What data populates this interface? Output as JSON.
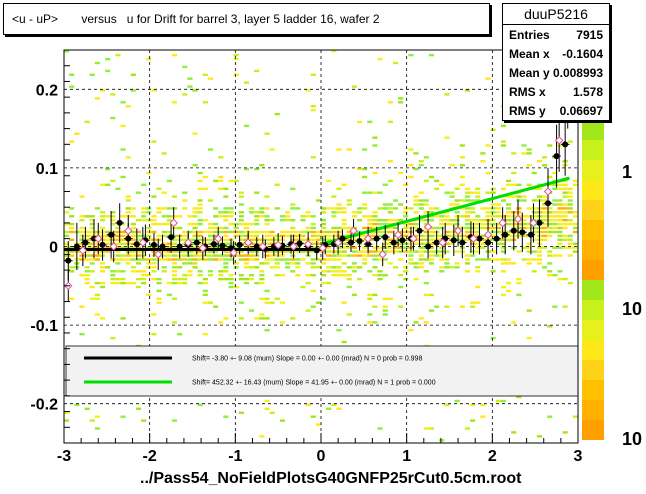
{
  "title": "<u - uP>       versus   u for Drift for barrel 3, layer 5 ladder 16, wafer 2",
  "footer": "../Pass54_NoFieldPlotsG40GNFP25rCut0.5cm.root",
  "stats": {
    "name": "duuP5216",
    "rows": [
      {
        "label": "Entries",
        "value": "7915"
      },
      {
        "label": "Mean x",
        "value": "-0.1604"
      },
      {
        "label": "Mean y",
        "value": "0.008993"
      },
      {
        "label": "RMS x",
        "value": "1.578"
      },
      {
        "label": "RMS y",
        "value": "0.06697"
      }
    ]
  },
  "colors": {
    "black_fit": "#000000",
    "green_fit": "#00dd00",
    "open_marker": "#e0509a",
    "palette": [
      "#ffe81a",
      "#f5f01a",
      "#c8f01a",
      "#a0e61a",
      "#8cf03c",
      "#ffc800",
      "#ffb000"
    ]
  },
  "chart_data": {
    "type": "scatter",
    "xlim": [
      -3,
      3
    ],
    "ylim": [
      -0.25,
      0.25
    ],
    "x_ticks": [
      "-3",
      "-2",
      "-1",
      "0",
      "1",
      "2",
      "3"
    ],
    "y_ticks": [
      "-0.2",
      "-0.1",
      "0",
      "0.1",
      "0.2"
    ],
    "z_ticks": [
      "1",
      "10",
      "10"
    ],
    "grid": true,
    "legend_placement": "bottom",
    "legend": [
      {
        "color": "black",
        "text": "Shift=    -3.80 +- 9.08 (mum) Slope =     0.00 +- 0.00 (mrad)  N = 0 prob = 0.998"
      },
      {
        "color": "green",
        "text": "Shift=    452.32 +- 16.43 (mum) Slope =    41.95 +- 0.00 (mrad)  N = 1 prob = 0.000"
      }
    ],
    "fit_lines": [
      {
        "name": "black",
        "x": [
          -3,
          0
        ],
        "y": [
          -0.0038,
          -0.0038
        ]
      },
      {
        "name": "green",
        "x": [
          0,
          2.9
        ],
        "y": [
          0.003,
          0.087
        ]
      }
    ],
    "profile_filled": {
      "x": [
        -2.95,
        -2.85,
        -2.75,
        -2.65,
        -2.55,
        -2.45,
        -2.35,
        -2.25,
        -2.15,
        -2.05,
        -1.95,
        -1.85,
        -1.75,
        -1.65,
        -1.55,
        -1.45,
        -1.35,
        -1.25,
        -1.15,
        -1.05,
        -0.95,
        -0.85,
        -0.75,
        -0.65,
        -0.55,
        -0.45,
        -0.35,
        -0.25,
        -0.15,
        -0.05,
        0.05,
        0.15,
        0.25,
        0.35,
        0.45,
        0.55,
        0.65,
        0.75,
        0.85,
        0.95,
        1.05,
        1.15,
        1.25,
        1.35,
        1.45,
        1.55,
        1.65,
        1.75,
        1.85,
        1.95,
        2.05,
        2.15,
        2.25,
        2.35,
        2.45,
        2.55,
        2.65,
        2.75,
        2.85
      ],
      "y": [
        -0.018,
        0.0,
        0.005,
        0.01,
        0.002,
        0.015,
        0.03,
        0.01,
        0.003,
        0.008,
        0.002,
        0.0,
        0.012,
        0.0,
        0.002,
        0.005,
        0.0,
        0.003,
        0.001,
        -0.002,
        0.002,
        0.005,
        0.0,
        -0.003,
        0.0,
        0.001,
        0.003,
        0.004,
        0.0,
        -0.005,
        0.002,
        0.003,
        0.01,
        0.005,
        0.007,
        0.003,
        0.01,
        0.012,
        0.005,
        0.008,
        0.01,
        0.02,
        0.0,
        0.005,
        0.01,
        0.008,
        0.005,
        0.012,
        0.01,
        0.005,
        0.01,
        0.015,
        0.02,
        0.018,
        0.015,
        0.03,
        0.055,
        0.115,
        0.13
      ],
      "err": [
        0.025,
        0.03,
        0.02,
        0.025,
        0.02,
        0.03,
        0.025,
        0.02,
        0.02,
        0.02,
        0.015,
        0.015,
        0.02,
        0.015,
        0.015,
        0.015,
        0.012,
        0.012,
        0.012,
        0.012,
        0.012,
        0.012,
        0.012,
        0.012,
        0.012,
        0.012,
        0.012,
        0.012,
        0.012,
        0.012,
        0.012,
        0.012,
        0.012,
        0.012,
        0.012,
        0.012,
        0.015,
        0.015,
        0.015,
        0.015,
        0.015,
        0.02,
        0.015,
        0.015,
        0.02,
        0.02,
        0.02,
        0.02,
        0.02,
        0.02,
        0.02,
        0.025,
        0.025,
        0.025,
        0.025,
        0.03,
        0.03,
        0.04,
        0.04
      ]
    },
    "profile_open": {
      "x": [
        -2.95,
        -2.78,
        -2.6,
        -2.42,
        -2.25,
        -2.08,
        -1.9,
        -1.72,
        -1.55,
        -1.38,
        -1.2,
        -1.02,
        -0.85,
        -0.68,
        -0.5,
        -0.32,
        -0.15,
        0.02,
        0.2,
        0.38,
        0.55,
        0.72,
        0.9,
        1.08,
        1.25,
        1.42,
        1.6,
        1.78,
        1.95,
        2.12,
        2.3,
        2.48,
        2.65,
        2.78,
        2.88
      ],
      "y": [
        -0.05,
        -0.005,
        0.01,
        0.0,
        0.02,
        0.005,
        -0.01,
        0.03,
        0.005,
        -0.002,
        0.01,
        -0.008,
        0.005,
        0.0,
        0.002,
        0.0,
        0.003,
        -0.002,
        0.005,
        0.02,
        0.01,
        -0.01,
        0.015,
        0.01,
        0.025,
        0.005,
        0.02,
        0.01,
        0.015,
        0.03,
        0.035,
        0.03,
        0.07,
        0.135,
        0.2
      ],
      "err": [
        0.02,
        0.02,
        0.02,
        0.02,
        0.02,
        0.02,
        0.02,
        0.02,
        0.015,
        0.015,
        0.015,
        0.015,
        0.015,
        0.015,
        0.015,
        0.015,
        0.015,
        0.015,
        0.015,
        0.015,
        0.015,
        0.015,
        0.015,
        0.015,
        0.02,
        0.02,
        0.02,
        0.02,
        0.02,
        0.02,
        0.025,
        0.025,
        0.03,
        0.04,
        0.05
      ]
    }
  }
}
